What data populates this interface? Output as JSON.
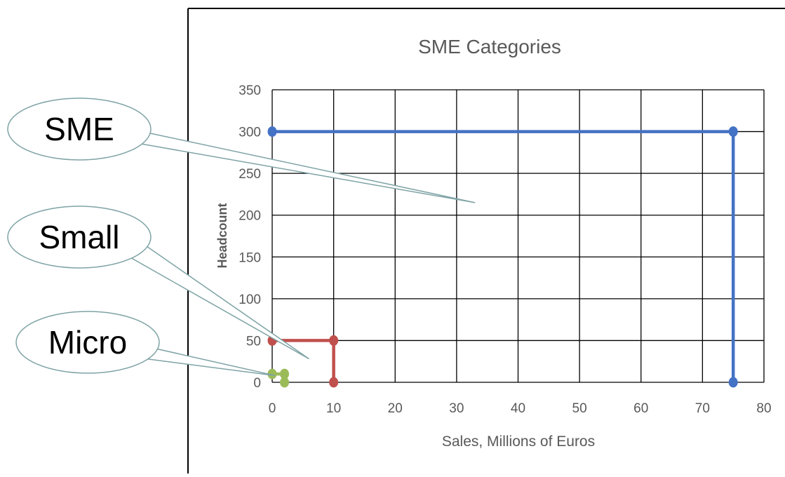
{
  "chart_data": {
    "type": "scatter",
    "title": "SME Categories",
    "xlabel": "Sales, Millions of Euros",
    "ylabel": "Headcount",
    "xlim": [
      0,
      80
    ],
    "ylim": [
      0,
      350
    ],
    "x_ticks": [
      0,
      10,
      20,
      30,
      40,
      50,
      60,
      70,
      80
    ],
    "y_ticks": [
      0,
      50,
      100,
      150,
      200,
      250,
      300,
      350
    ],
    "grid": true,
    "series": [
      {
        "name": "SME",
        "color": "#4472C4",
        "points": [
          [
            0,
            300
          ],
          [
            75,
            300
          ],
          [
            75,
            0
          ]
        ]
      },
      {
        "name": "Small",
        "color": "#C0504D",
        "points": [
          [
            0,
            50
          ],
          [
            10,
            50
          ],
          [
            10,
            0
          ]
        ]
      },
      {
        "name": "Micro",
        "color": "#9BBB59",
        "points": [
          [
            0,
            10
          ],
          [
            2,
            10
          ],
          [
            2,
            0
          ]
        ]
      }
    ],
    "annotations": [
      {
        "label": "SME",
        "target": [
          33,
          215
        ]
      },
      {
        "label": "Small",
        "target": [
          6,
          28
        ]
      },
      {
        "label": "Micro",
        "target": [
          0.5,
          8
        ]
      }
    ]
  }
}
